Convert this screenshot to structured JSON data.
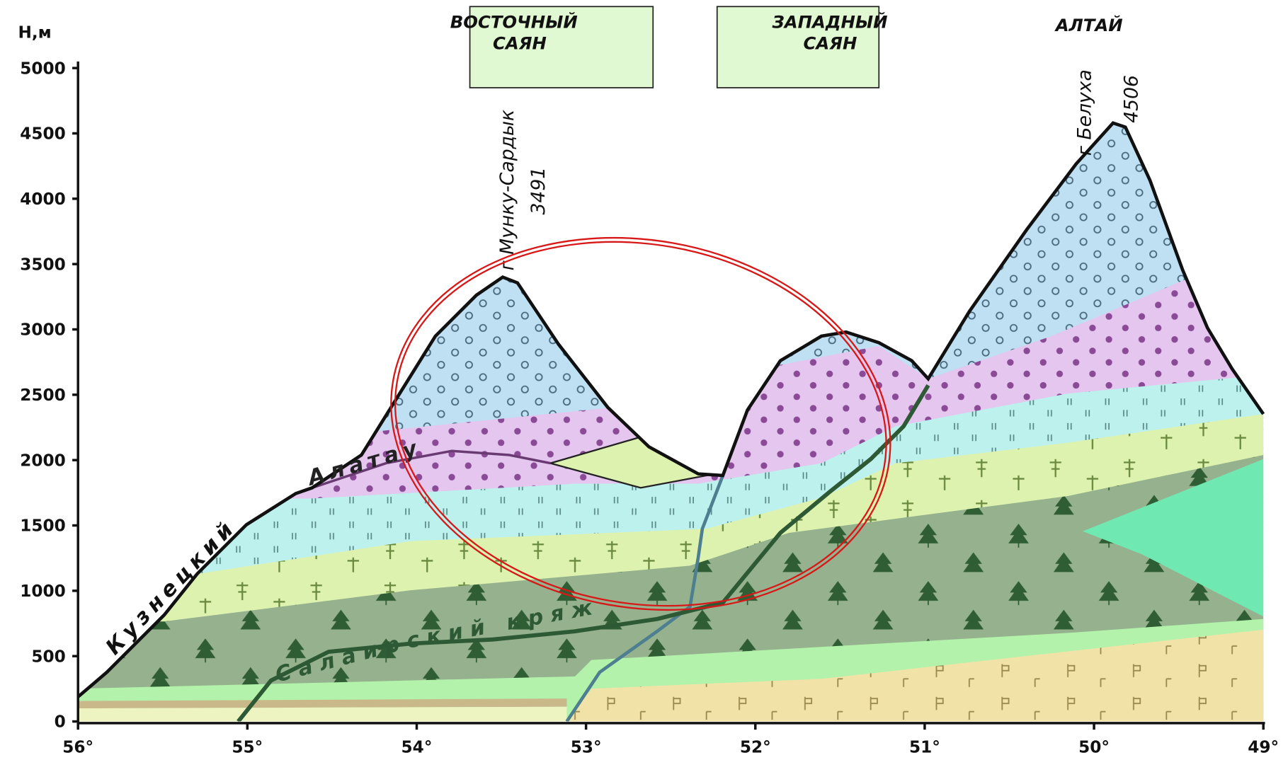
{
  "y_axis": {
    "label": "Н,м",
    "ticks": [
      "0",
      "500",
      "1000",
      "1500",
      "2000",
      "2500",
      "3000",
      "3500",
      "4000",
      "4500",
      "5000"
    ]
  },
  "x_axis": {
    "ticks": [
      "56°",
      "55°",
      "54°",
      "53°",
      "52°",
      "51°",
      "50°",
      "49°"
    ]
  },
  "regions": [
    {
      "lines": [
        "ВОСТОЧНЫЙ",
        "САЯН"
      ]
    },
    {
      "lines": [
        "ЗАПАДНЫЙ",
        "САЯН"
      ]
    },
    {
      "lines": [
        "АЛТАЙ"
      ]
    }
  ],
  "peaks": [
    {
      "name": "г Мунку-Сардык",
      "height": "3491"
    },
    {
      "name": "г Белуха",
      "height": "4506"
    }
  ],
  "ridges": [
    "Кузнецкий",
    "Алатау",
    "Салаирский кряж"
  ]
}
